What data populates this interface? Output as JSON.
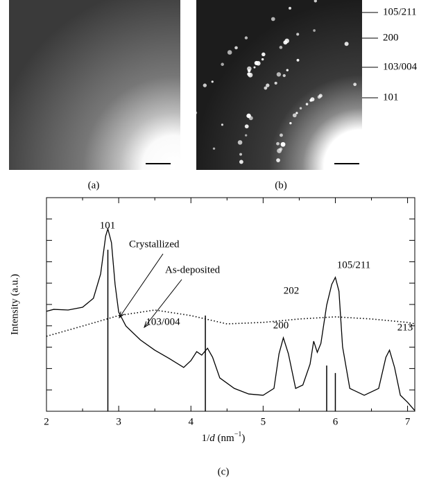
{
  "images": {
    "a": {
      "caption": "(a)"
    },
    "b": {
      "caption": "(b)",
      "ring_labels": [
        "105/211",
        "200",
        "103/004",
        "101"
      ]
    }
  },
  "chart_data": {
    "type": "line",
    "caption": "(c)",
    "x_label": [
      "1/",
      "d",
      " (nm",
      "−1",
      ")"
    ],
    "y_label": "Intensity (a.u.)",
    "xlim": [
      2,
      7.1
    ],
    "xticks": [
      2,
      3,
      4,
      5,
      6,
      7
    ],
    "xminorticks": [
      2.5,
      3.5,
      4.5,
      5.5,
      6.5
    ],
    "ylim": [
      0,
      10
    ],
    "yticks": [
      1,
      2,
      3,
      4,
      5,
      6,
      7,
      8,
      9
    ],
    "series": [
      {
        "name": "Crystallized",
        "color": "#000",
        "style": "solid",
        "x": [
          2.0,
          2.1,
          2.3,
          2.5,
          2.65,
          2.75,
          2.82,
          2.85,
          2.9,
          2.95,
          3.0,
          3.1,
          3.3,
          3.5,
          3.7,
          3.9,
          4.0,
          4.08,
          4.15,
          4.23,
          4.3,
          4.4,
          4.6,
          4.8,
          5.0,
          5.15,
          5.22,
          5.28,
          5.35,
          5.45,
          5.55,
          5.65,
          5.7,
          5.75,
          5.8,
          5.88,
          5.95,
          6.0,
          6.05,
          6.1,
          6.2,
          6.4,
          6.6,
          6.7,
          6.75,
          6.82,
          6.9,
          7.0,
          7.1
        ],
        "values": [
          4.68,
          4.77,
          4.74,
          4.87,
          5.29,
          6.43,
          8.21,
          8.54,
          7.89,
          5.94,
          4.64,
          3.99,
          3.34,
          2.86,
          2.47,
          2.05,
          2.37,
          2.79,
          2.63,
          2.95,
          2.53,
          1.56,
          1.07,
          0.81,
          0.75,
          1.07,
          2.69,
          3.44,
          2.69,
          1.07,
          1.23,
          2.21,
          3.28,
          2.76,
          3.18,
          4.97,
          5.94,
          6.27,
          5.62,
          3.02,
          1.07,
          0.75,
          1.07,
          2.53,
          2.86,
          2.05,
          0.75,
          0.42,
          0.03
        ]
      },
      {
        "name": "As-deposited",
        "color": "#000",
        "style": "dotted",
        "x": [
          2.0,
          2.5,
          3.0,
          3.5,
          4.0,
          4.5,
          5.0,
          5.5,
          6.0,
          6.5,
          7.0,
          7.1
        ],
        "values": [
          3.51,
          3.99,
          4.48,
          4.74,
          4.48,
          4.09,
          4.16,
          4.32,
          4.42,
          4.32,
          4.16,
          4.09
        ]
      }
    ],
    "sticks": {
      "color": "#000",
      "x": [
        2.85,
        4.2,
        5.88,
        6.0
      ],
      "values": [
        7.56,
        4.48,
        2.14,
        1.79
      ]
    },
    "peak_labels": [
      "101",
      "103/004",
      "200",
      "202",
      "105/211",
      "213"
    ]
  }
}
